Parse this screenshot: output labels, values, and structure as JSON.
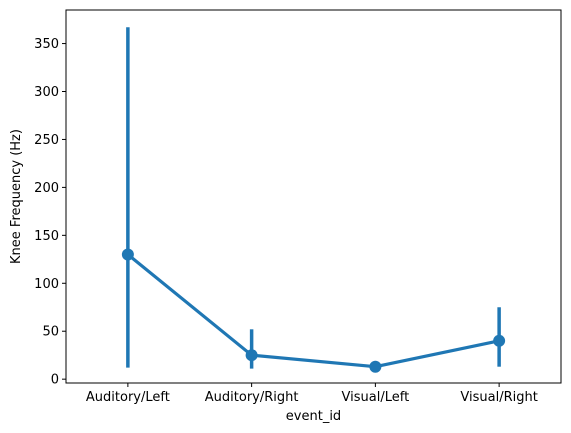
{
  "chart_data": {
    "type": "line",
    "xlabel": "event_id",
    "ylabel": "Knee Frequency (Hz)",
    "categories": [
      "Auditory/Left",
      "Auditory/Right",
      "Visual/Left",
      "Visual/Right"
    ],
    "values": [
      130,
      25,
      13,
      40
    ],
    "error_low": [
      12,
      11,
      11,
      13
    ],
    "error_high": [
      367,
      52,
      15,
      75
    ],
    "ylim": [
      -4,
      385
    ],
    "yticks": [
      0,
      50,
      100,
      150,
      200,
      250,
      300,
      350
    ],
    "ytick_labels": [
      "0",
      "50",
      "100",
      "150",
      "200",
      "250",
      "300",
      "350"
    ],
    "color": "#1f77b4",
    "grid": false
  }
}
